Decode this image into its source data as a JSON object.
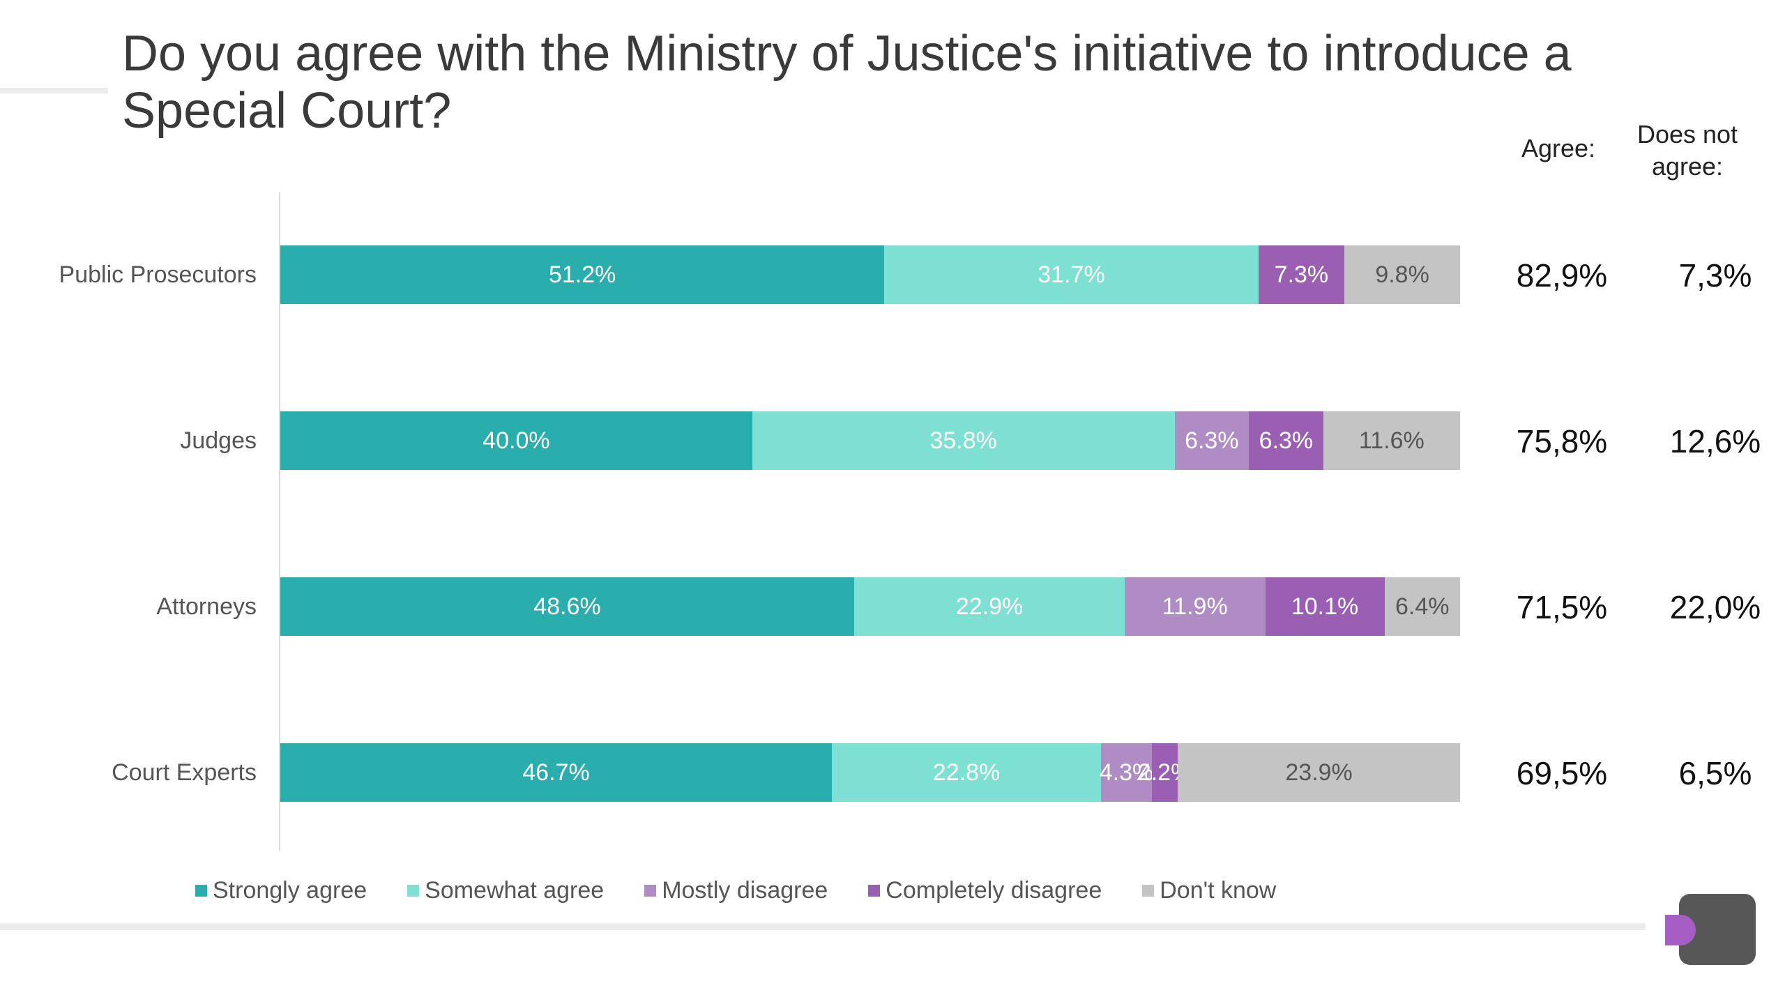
{
  "title": "Do you agree with the Ministry of Justice's initiative to introduce a Special Court?",
  "summary_headers": {
    "agree": "Agree:",
    "disagree": "Does not agree:"
  },
  "colors": {
    "strongly_agree": "#2aadad",
    "somewhat_agree": "#7de0d3",
    "mostly_disagree": "#b08cc4",
    "completely_disagree": "#9a5fb3",
    "dont_know": "#c4c4c4",
    "logo_dark": "#575757",
    "logo_accent": "#a55ec4"
  },
  "chart_data": {
    "type": "bar",
    "orientation": "horizontal-stacked-100",
    "title": "Do you agree with the Ministry of Justice's initiative to introduce a Special Court?",
    "categories": [
      "Public Prosecutors",
      "Judges",
      "Attorneys",
      "Court Experts"
    ],
    "series": [
      {
        "name": "Strongly agree",
        "key": "strongly_agree",
        "values": [
          51.2,
          40.0,
          48.6,
          46.7
        ],
        "labels": [
          "51.2%",
          "40.0%",
          "48.6%",
          "46.7%"
        ]
      },
      {
        "name": "Somewhat agree",
        "key": "somewhat_agree",
        "values": [
          31.7,
          35.8,
          22.9,
          22.8
        ],
        "labels": [
          "31.7%",
          "35.8%",
          "22.9%",
          "22.8%"
        ]
      },
      {
        "name": "Mostly disagree",
        "key": "mostly_disagree",
        "values": [
          0,
          6.3,
          11.9,
          4.3
        ],
        "labels": [
          "",
          "6.3%",
          "11.9%",
          "4.3%"
        ]
      },
      {
        "name": "Completely disagree",
        "key": "completely_disagree",
        "values": [
          7.3,
          6.3,
          10.1,
          2.2
        ],
        "labels": [
          "7.3%",
          "6.3%",
          "10.1%",
          "2.2%"
        ]
      },
      {
        "name": "Don't know",
        "key": "dont_know",
        "values": [
          9.8,
          11.6,
          6.4,
          23.9
        ],
        "labels": [
          "9.8%",
          "11.6%",
          "6.4%",
          "23.9%"
        ]
      }
    ],
    "summary": {
      "agree": [
        "82,9%",
        "75,8%",
        "71,5%",
        "69,5%"
      ],
      "disagree": [
        "7,3%",
        "12,6%",
        "22,0%",
        "6,5%"
      ]
    },
    "legend_position": "bottom",
    "grid": false
  }
}
